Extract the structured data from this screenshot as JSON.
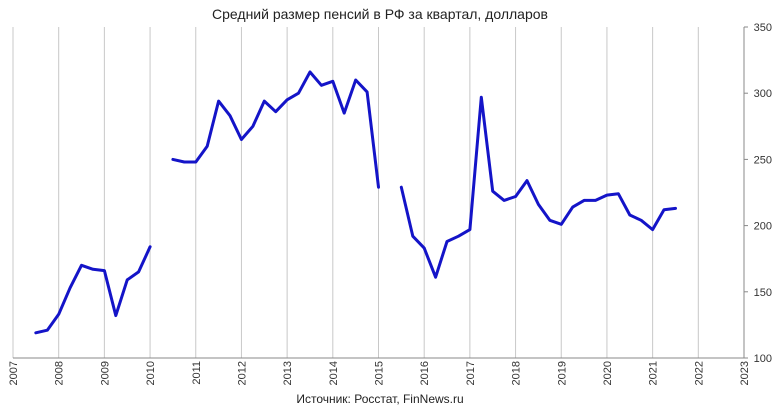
{
  "chart_data": {
    "type": "line",
    "title": "Средний размер пенсий в РФ за квартал, долларов",
    "source": "Источник: Росстат, FinNews.ru",
    "ylim": [
      100,
      350
    ],
    "yticks": [
      100,
      150,
      200,
      250,
      300,
      350
    ],
    "xlim": [
      2007,
      2023
    ],
    "xticks": [
      2007,
      2008,
      2009,
      2010,
      2011,
      2012,
      2013,
      2014,
      2015,
      2016,
      2017,
      2018,
      2019,
      2020,
      2021,
      2022,
      2023
    ],
    "grid": "vertical",
    "y_axis_position": "right",
    "colors": {
      "series": "#1414c8"
    },
    "series": [
      {
        "segments": [
          [
            [
              2007.5,
              119
            ],
            [
              2007.75,
              121
            ],
            [
              2008.0,
              133
            ],
            [
              2008.25,
              153
            ],
            [
              2008.5,
              170
            ],
            [
              2008.75,
              167
            ],
            [
              2009.0,
              166
            ],
            [
              2009.25,
              132
            ],
            [
              2009.5,
              159
            ],
            [
              2009.75,
              165
            ],
            [
              2010.0,
              184
            ]
          ],
          [
            [
              2010.5,
              250
            ],
            [
              2010.75,
              248
            ],
            [
              2011.0,
              248
            ],
            [
              2011.25,
              260
            ],
            [
              2011.5,
              294
            ],
            [
              2011.75,
              283
            ],
            [
              2012.0,
              265
            ],
            [
              2012.25,
              275
            ],
            [
              2012.5,
              294
            ],
            [
              2012.75,
              286
            ],
            [
              2013.0,
              295
            ],
            [
              2013.25,
              300
            ],
            [
              2013.5,
              316
            ],
            [
              2013.75,
              306
            ],
            [
              2014.0,
              309
            ],
            [
              2014.25,
              285
            ],
            [
              2014.5,
              310
            ],
            [
              2014.75,
              301
            ],
            [
              2015.0,
              229
            ]
          ],
          [
            [
              2015.5,
              229
            ],
            [
              2015.75,
              192
            ],
            [
              2016.0,
              183
            ],
            [
              2016.25,
              161
            ],
            [
              2016.5,
              188
            ],
            [
              2016.75,
              192
            ],
            [
              2017.0,
              197
            ],
            [
              2017.25,
              297
            ],
            [
              2017.5,
              226
            ],
            [
              2017.75,
              219
            ],
            [
              2018.0,
              222
            ],
            [
              2018.25,
              234
            ],
            [
              2018.5,
              216
            ],
            [
              2018.75,
              204
            ],
            [
              2019.0,
              201
            ],
            [
              2019.25,
              214
            ],
            [
              2019.5,
              219
            ],
            [
              2019.75,
              219
            ],
            [
              2020.0,
              223
            ],
            [
              2020.25,
              224
            ],
            [
              2020.5,
              208
            ],
            [
              2020.75,
              204
            ],
            [
              2021.0,
              197
            ],
            [
              2021.25,
              212
            ],
            [
              2021.5,
              213
            ]
          ]
        ]
      }
    ]
  }
}
